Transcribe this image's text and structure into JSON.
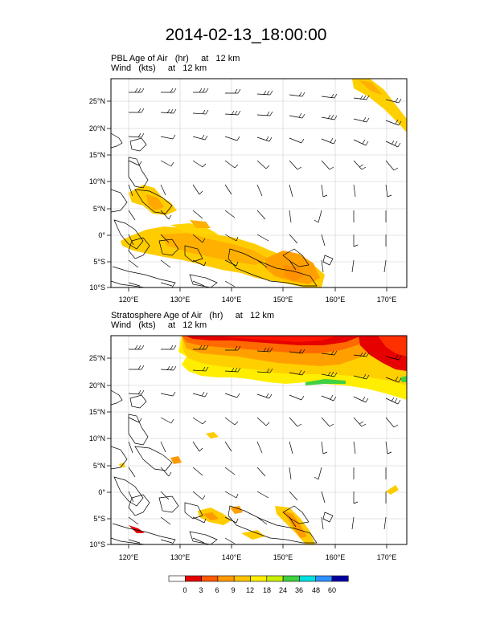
{
  "title": "2014-02-13_18:00:00",
  "panels": [
    {
      "id": "pbl",
      "label_line1": "PBL Age of Air   (hr)     at   12 km",
      "label_line2": "Wind   (kts)     at   12 km",
      "field": "PBL Age of Air",
      "units": "hr",
      "level": "12 km"
    },
    {
      "id": "strat",
      "label_line1": "Stratosphere Age of Air   (hr)     at   12 km",
      "label_line2": "Wind   (kts)     at   12 km",
      "field": "Stratosphere Age of Air",
      "units": "hr",
      "level": "12 km"
    }
  ],
  "map": {
    "lon_range": [
      115,
      173
    ],
    "lat_range": [
      -10,
      29
    ],
    "lon_ticks": [
      "120°E",
      "130°E",
      "140°E",
      "150°E",
      "160°E",
      "170°E"
    ],
    "lat_ticks": [
      "25°N",
      "20°N",
      "15°N",
      "10°N",
      "5°N",
      "0°",
      "5°S",
      "10°S"
    ],
    "gridlines": true
  },
  "colorbar": {
    "labels": [
      "0",
      "3",
      "6",
      "9",
      "12",
      "18",
      "24",
      "36",
      "48",
      "60"
    ],
    "colors": [
      "#ffffff",
      "#e60000",
      "#ff5a00",
      "#ff9a00",
      "#ffc400",
      "#ffee00",
      "#c8f000",
      "#40d040",
      "#00e0e0",
      "#3090ff",
      "#0000a0"
    ]
  }
}
